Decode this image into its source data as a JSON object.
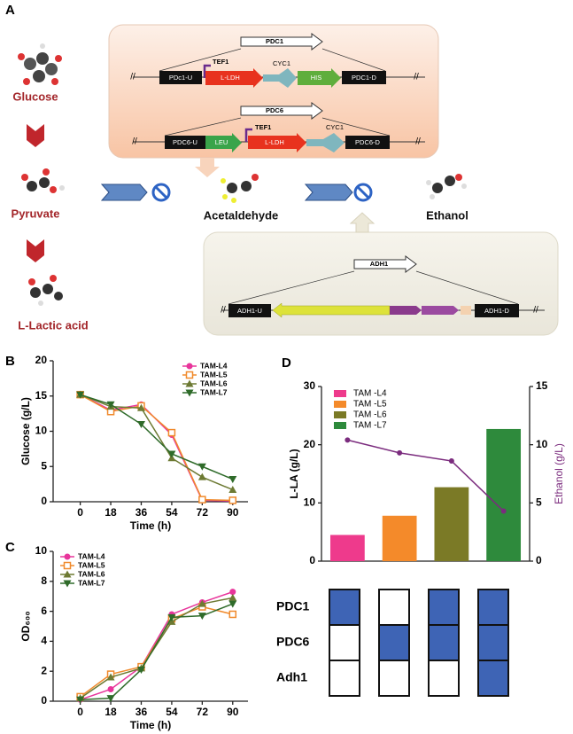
{
  "panel_labels": [
    "A",
    "B",
    "C",
    "D"
  ],
  "diagram": {
    "molecules": [
      "Glucose",
      "Pyruvate",
      "L-Lactic acid",
      "Acetaldehyde",
      "Ethanol"
    ],
    "construct1": {
      "locus": "PDC1",
      "parts": [
        "PDc1-U",
        "TEF1",
        "L-LDH",
        "CYC1",
        "HIS",
        "PDC1-D"
      ]
    },
    "construct2": {
      "locus": "PDC6",
      "parts": [
        "PDC6-U",
        "LEU",
        "TEF1",
        "L-LDH",
        "CYC1",
        "PDC6-D"
      ]
    },
    "construct3": {
      "locus": "ADH1",
      "parts": [
        "ADH1-U",
        "ADH1-D"
      ]
    }
  },
  "chart_data": [
    {
      "type": "line",
      "xlabel": "Time (h)",
      "ylabel": "Glucose (g/L)",
      "x": [
        0,
        18,
        36,
        54,
        72,
        90
      ],
      "xlim": [
        -16,
        99
      ],
      "xticks": [
        0,
        18,
        36,
        54,
        72,
        90
      ],
      "ylim": [
        0,
        20
      ],
      "yticks": [
        0,
        5,
        10,
        15,
        20
      ],
      "legend": "upper right",
      "series": [
        {
          "name": "TAM-L4",
          "color": "#e8359b",
          "marker": "circle",
          "values": [
            15.2,
            13.0,
            13.8,
            9.5,
            0.2,
            0.1
          ]
        },
        {
          "name": "TAM-L5",
          "color": "#f08a2c",
          "marker": "square",
          "values": [
            15.2,
            12.8,
            13.6,
            9.8,
            0.3,
            0.2
          ]
        },
        {
          "name": "TAM-L6",
          "color": "#6d7a33",
          "marker": "triangle",
          "values": [
            15.2,
            13.5,
            13.3,
            6.2,
            3.5,
            1.7
          ]
        },
        {
          "name": "TAM-L7",
          "color": "#2f6b2a",
          "marker": "triangle-down",
          "values": [
            15.2,
            13.8,
            11.0,
            6.8,
            5.0,
            3.2
          ]
        }
      ]
    },
    {
      "type": "line",
      "xlabel": "Time (h)",
      "ylabel": "OD₆₀₀",
      "x": [
        0,
        18,
        36,
        54,
        72,
        90
      ],
      "xlim": [
        -16,
        99
      ],
      "xticks": [
        0,
        18,
        36,
        54,
        72,
        90
      ],
      "ylim": [
        0,
        10
      ],
      "yticks": [
        0,
        2,
        4,
        6,
        8,
        10
      ],
      "legend": "upper left",
      "series": [
        {
          "name": "TAM-L4",
          "color": "#e8359b",
          "marker": "circle",
          "values": [
            0.1,
            0.8,
            2.3,
            5.8,
            6.6,
            7.3
          ]
        },
        {
          "name": "TAM-L5",
          "color": "#f08a2c",
          "marker": "square",
          "values": [
            0.3,
            1.8,
            2.3,
            5.5,
            6.3,
            5.8
          ]
        },
        {
          "name": "TAM-L6",
          "color": "#6d7a33",
          "marker": "triangle",
          "values": [
            0.2,
            1.6,
            2.2,
            5.3,
            6.5,
            6.9
          ]
        },
        {
          "name": "TAM-L7",
          "color": "#2f6b2a",
          "marker": "triangle-down",
          "values": [
            0.1,
            0.2,
            2.1,
            5.6,
            5.7,
            6.5
          ]
        }
      ]
    },
    {
      "type": "bar-line",
      "ylabel": "L-LA (g/L)",
      "y2label": "Ethanol (g/L)",
      "categories": [
        null,
        null,
        null,
        null
      ],
      "ylim": [
        0,
        30
      ],
      "yticks": [
        0,
        10,
        20,
        30
      ],
      "y2lim": [
        0,
        15
      ],
      "y2ticks": [
        0,
        5,
        10,
        15
      ],
      "legend": "upper left",
      "series": [
        {
          "name": "TAM -L4",
          "color": "#ee3a8c",
          "values": [
            4.5,
            null,
            null,
            null
          ]
        },
        {
          "name": "TAM -L5",
          "color": "#f48a2a",
          "values": [
            null,
            7.8,
            null,
            null
          ]
        },
        {
          "name": "TAM -L6",
          "color": "#7b7a26",
          "values": [
            null,
            null,
            12.7,
            null
          ]
        },
        {
          "name": "TAM -L7",
          "color": "#2e8a3c",
          "values": [
            null,
            null,
            null,
            22.7
          ]
        },
        {
          "type": "line",
          "axis": "y2",
          "color": "#7b2c7e",
          "values": [
            10.4,
            9.3,
            8.6,
            4.3
          ]
        }
      ]
    }
  ],
  "matrix": {
    "rows": [
      "PDC1",
      "PDC6",
      "Adh1"
    ],
    "color": "#3e64b5",
    "filled": [
      [
        true,
        false,
        true,
        true
      ],
      [
        false,
        true,
        true,
        true
      ],
      [
        false,
        false,
        false,
        true
      ]
    ]
  }
}
